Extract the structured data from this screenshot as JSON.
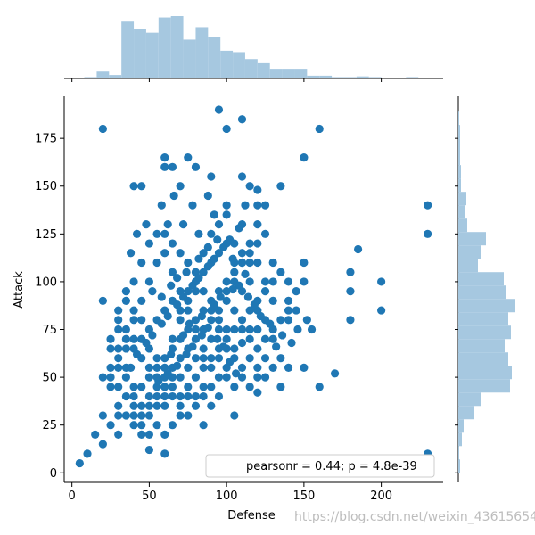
{
  "chart_data": {
    "type": "scatter",
    "title": "",
    "xlabel": "Defense",
    "ylabel": "Attack",
    "xlim": [
      -5,
      240
    ],
    "ylim": [
      -5,
      197
    ],
    "xticks": [
      0,
      50,
      100,
      150,
      200
    ],
    "yticks": [
      0,
      25,
      50,
      75,
      100,
      125,
      150,
      175
    ],
    "point_color": "#1f77b4",
    "hist_color": "#a6c8e0",
    "legend": {
      "text": "pearsonr = 0.44; p = 4.8e-39",
      "placement": "lower-right"
    },
    "grid": false,
    "marginal_x_hist": {
      "bin_edges": [
        0,
        8,
        16,
        24,
        32,
        40,
        48,
        56,
        64,
        72,
        80,
        88,
        96,
        104,
        112,
        120,
        128,
        136,
        144,
        152,
        160,
        168,
        176,
        184,
        192,
        200,
        208,
        216,
        224,
        232
      ],
      "heights": [
        1,
        2,
        10,
        5,
        82,
        72,
        66,
        88,
        90,
        56,
        74,
        60,
        40,
        38,
        28,
        22,
        14,
        14,
        14,
        4,
        4,
        2,
        2,
        3,
        2,
        1,
        0,
        2,
        0
      ]
    },
    "marginal_y_hist": {
      "bin_edges": [
        0,
        7,
        14,
        21,
        28,
        35,
        42,
        49,
        56,
        63,
        70,
        77,
        84,
        91,
        98,
        105,
        112,
        119,
        126,
        133,
        140,
        147,
        154,
        161,
        168,
        175,
        182,
        189
      ],
      "heights": [
        2,
        1,
        4,
        6,
        18,
        26,
        58,
        60,
        56,
        52,
        59,
        56,
        64,
        53,
        51,
        22,
        25,
        31,
        10,
        7,
        9,
        3,
        3,
        2,
        2,
        2,
        1
      ]
    },
    "points": [
      [
        5,
        5
      ],
      [
        10,
        10
      ],
      [
        15,
        20
      ],
      [
        20,
        15
      ],
      [
        20,
        90
      ],
      [
        20,
        180
      ],
      [
        30,
        30
      ],
      [
        40,
        150
      ],
      [
        45,
        150
      ],
      [
        60,
        160
      ],
      [
        60,
        165
      ],
      [
        65,
        160
      ],
      [
        75,
        165
      ],
      [
        80,
        160
      ],
      [
        95,
        190
      ],
      [
        100,
        180
      ],
      [
        110,
        185
      ],
      [
        115,
        150
      ],
      [
        120,
        140
      ],
      [
        135,
        150
      ],
      [
        150,
        165
      ],
      [
        160,
        180
      ],
      [
        230,
        140
      ],
      [
        230,
        125
      ],
      [
        230,
        10
      ],
      [
        180,
        105
      ],
      [
        185,
        117
      ],
      [
        200,
        100
      ],
      [
        200,
        85
      ],
      [
        180,
        80
      ],
      [
        180,
        95
      ],
      [
        170,
        52
      ],
      [
        160,
        45
      ],
      [
        150,
        55
      ],
      [
        155,
        75
      ],
      [
        140,
        90
      ],
      [
        140,
        80
      ],
      [
        150,
        110
      ],
      [
        150,
        100
      ],
      [
        135,
        45
      ],
      [
        120,
        42
      ],
      [
        105,
        30
      ],
      [
        85,
        25
      ],
      [
        60,
        10
      ],
      [
        50,
        12
      ],
      [
        30,
        20
      ],
      [
        25,
        25
      ],
      [
        20,
        30
      ],
      [
        40,
        40
      ],
      [
        45,
        45
      ],
      [
        50,
        50
      ],
      [
        55,
        55
      ],
      [
        60,
        60
      ],
      [
        65,
        65
      ],
      [
        70,
        70
      ],
      [
        75,
        75
      ],
      [
        80,
        80
      ],
      [
        85,
        85
      ],
      [
        90,
        90
      ],
      [
        95,
        95
      ],
      [
        100,
        100
      ],
      [
        105,
        105
      ],
      [
        110,
        110
      ],
      [
        115,
        115
      ],
      [
        120,
        120
      ],
      [
        125,
        125
      ],
      [
        130,
        110
      ],
      [
        130,
        100
      ],
      [
        125,
        95
      ],
      [
        120,
        85
      ],
      [
        115,
        75
      ],
      [
        110,
        68
      ],
      [
        105,
        60
      ],
      [
        100,
        55
      ],
      [
        95,
        50
      ],
      [
        90,
        45
      ],
      [
        85,
        40
      ],
      [
        80,
        35
      ],
      [
        75,
        30
      ],
      [
        70,
        35
      ],
      [
        65,
        40
      ],
      [
        60,
        45
      ],
      [
        55,
        50
      ],
      [
        50,
        55
      ],
      [
        45,
        60
      ],
      [
        40,
        65
      ],
      [
        35,
        70
      ],
      [
        30,
        75
      ],
      [
        35,
        55
      ],
      [
        40,
        45
      ],
      [
        45,
        35
      ],
      [
        50,
        30
      ],
      [
        55,
        25
      ],
      [
        60,
        20
      ],
      [
        65,
        25
      ],
      [
        70,
        30
      ],
      [
        75,
        40
      ],
      [
        80,
        50
      ],
      [
        85,
        60
      ],
      [
        90,
        70
      ],
      [
        95,
        80
      ],
      [
        100,
        90
      ],
      [
        105,
        100
      ],
      [
        110,
        110
      ],
      [
        115,
        120
      ],
      [
        120,
        130
      ],
      [
        125,
        140
      ],
      [
        110,
        95
      ],
      [
        100,
        75
      ],
      [
        95,
        65
      ],
      [
        90,
        55
      ],
      [
        85,
        65
      ],
      [
        80,
        75
      ],
      [
        75,
        85
      ],
      [
        70,
        95
      ],
      [
        65,
        105
      ],
      [
        60,
        115
      ],
      [
        55,
        125
      ],
      [
        50,
        120
      ],
      [
        45,
        110
      ],
      [
        40,
        100
      ],
      [
        35,
        90
      ],
      [
        30,
        80
      ],
      [
        25,
        70
      ],
      [
        30,
        60
      ],
      [
        35,
        50
      ],
      [
        40,
        35
      ],
      [
        45,
        25
      ],
      [
        50,
        20
      ],
      [
        55,
        35
      ],
      [
        60,
        55
      ],
      [
        65,
        70
      ],
      [
        70,
        80
      ],
      [
        75,
        95
      ],
      [
        80,
        105
      ],
      [
        85,
        115
      ],
      [
        90,
        125
      ],
      [
        95,
        130
      ],
      [
        100,
        140
      ],
      [
        105,
        120
      ],
      [
        110,
        130
      ],
      [
        115,
        100
      ],
      [
        120,
        90
      ],
      [
        125,
        80
      ],
      [
        130,
        70
      ],
      [
        135,
        60
      ],
      [
        140,
        55
      ],
      [
        130,
        55
      ],
      [
        125,
        50
      ],
      [
        120,
        55
      ],
      [
        115,
        60
      ],
      [
        110,
        55
      ],
      [
        105,
        65
      ],
      [
        100,
        70
      ],
      [
        95,
        75
      ],
      [
        90,
        85
      ],
      [
        85,
        95
      ],
      [
        80,
        100
      ],
      [
        75,
        110
      ],
      [
        70,
        115
      ],
      [
        65,
        120
      ],
      [
        60,
        125
      ],
      [
        55,
        110
      ],
      [
        50,
        100
      ],
      [
        45,
        90
      ],
      [
        40,
        80
      ],
      [
        35,
        75
      ],
      [
        30,
        65
      ],
      [
        25,
        55
      ],
      [
        30,
        45
      ],
      [
        35,
        40
      ],
      [
        40,
        30
      ],
      [
        45,
        20
      ],
      [
        50,
        40
      ],
      [
        55,
        45
      ],
      [
        60,
        50
      ],
      [
        65,
        55
      ],
      [
        70,
        60
      ],
      [
        75,
        65
      ],
      [
        80,
        70
      ],
      [
        85,
        75
      ],
      [
        90,
        80
      ],
      [
        95,
        85
      ],
      [
        100,
        95
      ],
      [
        105,
        85
      ],
      [
        110,
        80
      ],
      [
        115,
        85
      ],
      [
        120,
        75
      ],
      [
        125,
        70
      ],
      [
        130,
        75
      ],
      [
        135,
        80
      ],
      [
        140,
        85
      ],
      [
        145,
        95
      ],
      [
        145,
        85
      ],
      [
        140,
        100
      ],
      [
        135,
        105
      ],
      [
        130,
        90
      ],
      [
        125,
        100
      ],
      [
        120,
        110
      ],
      [
        115,
        110
      ],
      [
        110,
        115
      ],
      [
        105,
        110
      ],
      [
        100,
        120
      ],
      [
        95,
        115
      ],
      [
        90,
        110
      ],
      [
        85,
        105
      ],
      [
        80,
        95
      ],
      [
        75,
        90
      ],
      [
        70,
        85
      ],
      [
        65,
        90
      ],
      [
        60,
        85
      ],
      [
        55,
        80
      ],
      [
        50,
        75
      ],
      [
        45,
        80
      ],
      [
        40,
        85
      ],
      [
        35,
        95
      ],
      [
        30,
        85
      ],
      [
        25,
        65
      ],
      [
        20,
        50
      ],
      [
        25,
        45
      ],
      [
        30,
        35
      ],
      [
        35,
        30
      ],
      [
        40,
        25
      ],
      [
        45,
        30
      ],
      [
        50,
        35
      ],
      [
        55,
        40
      ],
      [
        60,
        35
      ],
      [
        65,
        45
      ],
      [
        70,
        50
      ],
      [
        75,
        55
      ],
      [
        80,
        60
      ],
      [
        85,
        55
      ],
      [
        90,
        60
      ],
      [
        95,
        60
      ],
      [
        100,
        65
      ],
      [
        105,
        75
      ],
      [
        110,
        75
      ],
      [
        115,
        70
      ],
      [
        120,
        65
      ],
      [
        125,
        60
      ],
      [
        120,
        50
      ],
      [
        115,
        45
      ],
      [
        110,
        50
      ],
      [
        105,
        45
      ],
      [
        100,
        50
      ],
      [
        95,
        40
      ],
      [
        90,
        35
      ],
      [
        85,
        45
      ],
      [
        80,
        40
      ],
      [
        75,
        45
      ],
      [
        70,
        40
      ],
      [
        65,
        50
      ],
      [
        60,
        40
      ],
      [
        55,
        60
      ],
      [
        50,
        65
      ],
      [
        45,
        70
      ],
      [
        40,
        70
      ],
      [
        35,
        65
      ],
      [
        30,
        55
      ],
      [
        25,
        50
      ],
      [
        38,
        55
      ],
      [
        42,
        62
      ],
      [
        48,
        68
      ],
      [
        52,
        72
      ],
      [
        58,
        78
      ],
      [
        62,
        82
      ],
      [
        68,
        88
      ],
      [
        72,
        92
      ],
      [
        78,
        98
      ],
      [
        82,
        102
      ],
      [
        88,
        108
      ],
      [
        92,
        112
      ],
      [
        98,
        118
      ],
      [
        102,
        122
      ],
      [
        108,
        128
      ],
      [
        62,
        130
      ],
      [
        72,
        130
      ],
      [
        82,
        125
      ],
      [
        92,
        135
      ],
      [
        100,
        135
      ],
      [
        58,
        140
      ],
      [
        66,
        145
      ],
      [
        88,
        145
      ],
      [
        78,
        140
      ],
      [
        70,
        150
      ],
      [
        90,
        155
      ],
      [
        112,
        140
      ],
      [
        110,
        155
      ],
      [
        120,
        148
      ],
      [
        38,
        115
      ],
      [
        42,
        125
      ],
      [
        48,
        130
      ],
      [
        52,
        95
      ],
      [
        58,
        92
      ],
      [
        64,
        98
      ],
      [
        68,
        102
      ],
      [
        74,
        105
      ],
      [
        82,
        112
      ],
      [
        88,
        118
      ],
      [
        94,
        122
      ],
      [
        104,
        112
      ],
      [
        108,
        98
      ],
      [
        114,
        92
      ],
      [
        118,
        88
      ],
      [
        122,
        82
      ],
      [
        128,
        78
      ],
      [
        132,
        66
      ],
      [
        136,
        72
      ],
      [
        142,
        68
      ],
      [
        146,
        75
      ],
      [
        152,
        80
      ],
      [
        56,
        48
      ],
      [
        62,
        52
      ],
      [
        68,
        56
      ],
      [
        74,
        62
      ],
      [
        78,
        66
      ],
      [
        84,
        72
      ],
      [
        88,
        76
      ],
      [
        94,
        70
      ],
      [
        98,
        66
      ],
      [
        102,
        58
      ],
      [
        106,
        52
      ],
      [
        64,
        62
      ],
      [
        72,
        72
      ],
      [
        76,
        78
      ],
      [
        84,
        82
      ],
      [
        92,
        88
      ],
      [
        96,
        92
      ],
      [
        104,
        96
      ],
      [
        112,
        104
      ]
    ]
  },
  "watermark": "https://blog.csdn.net/weixin_43615654"
}
